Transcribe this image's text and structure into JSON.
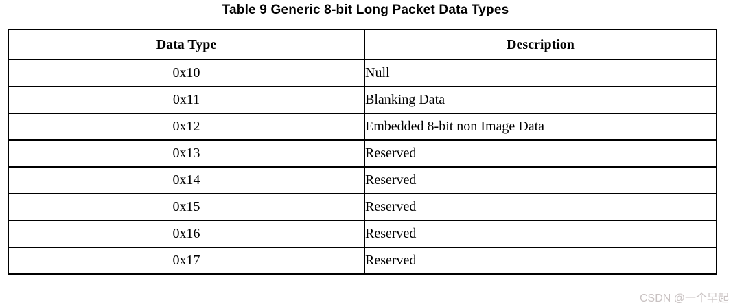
{
  "title": "Table 9 Generic 8-bit Long Packet Data Types",
  "table": {
    "headers": [
      "Data Type",
      "Description"
    ],
    "rows": [
      {
        "data_type": "0x10",
        "description": "Null"
      },
      {
        "data_type": "0x11",
        "description": "Blanking Data"
      },
      {
        "data_type": "0x12",
        "description": "Embedded 8-bit non Image Data"
      },
      {
        "data_type": "0x13",
        "description": "Reserved"
      },
      {
        "data_type": "0x14",
        "description": "Reserved"
      },
      {
        "data_type": "0x15",
        "description": "Reserved"
      },
      {
        "data_type": "0x16",
        "description": "Reserved"
      },
      {
        "data_type": "0x17",
        "description": "Reserved"
      }
    ]
  },
  "watermark": "CSDN @一个早起",
  "colors": {
    "background": "#ffffff",
    "border": "#000000",
    "text": "#000000",
    "watermark": "#c9c2c2"
  }
}
